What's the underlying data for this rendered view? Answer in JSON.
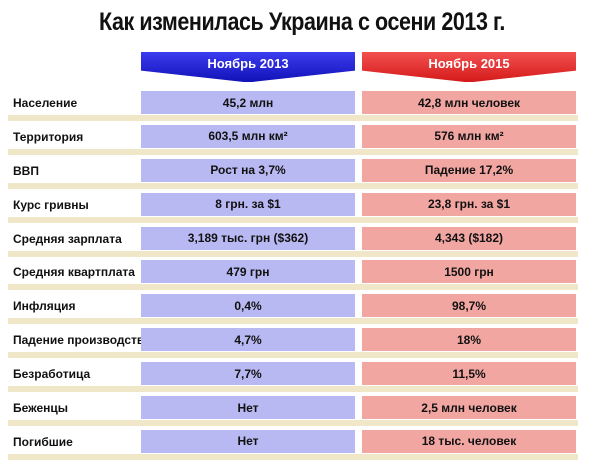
{
  "title": "Как изменилась Украина с осени 2013 г.",
  "headers": {
    "col2013": "Ноябрь 2013",
    "col2015": "Ноябрь 2015"
  },
  "colors": {
    "blue_header": "#1f1fcc",
    "red_header": "#e03030",
    "blue_cell": "#b8b8f2",
    "red_cell": "#f2a6a2",
    "stripe": "#f0e6c8"
  },
  "rows": [
    {
      "label": "Население",
      "v2013": "45,2 млн",
      "v2015": "42,8 млн человек"
    },
    {
      "label": "Территория",
      "v2013": "603,5 млн км²",
      "v2015": "576 млн км²"
    },
    {
      "label": "ВВП",
      "v2013": "Рост на 3,7%",
      "v2015": "Падение 17,2%"
    },
    {
      "label": "Курс гривны",
      "v2013": "8 грн. за $1",
      "v2015": "23,8 грн. за $1"
    },
    {
      "label": "Средняя зарплата",
      "v2013": "3,189 тыс. грн ($362)",
      "v2015": "4,343 ($182)"
    },
    {
      "label": "Средняя квартплата",
      "v2013": "479 грн",
      "v2015": "1500 грн"
    },
    {
      "label": "Инфляция",
      "v2013": "0,4%",
      "v2015": "98,7%"
    },
    {
      "label": "Падение производства",
      "v2013": "4,7%",
      "v2015": "18%"
    },
    {
      "label": "Безработица",
      "v2013": "7,7%",
      "v2015": "11,5%"
    },
    {
      "label": "Беженцы",
      "v2013": "Нет",
      "v2015": "2,5 млн человек"
    },
    {
      "label": "Погибшие",
      "v2013": "Нет",
      "v2015": "18 тыс. человек"
    }
  ]
}
